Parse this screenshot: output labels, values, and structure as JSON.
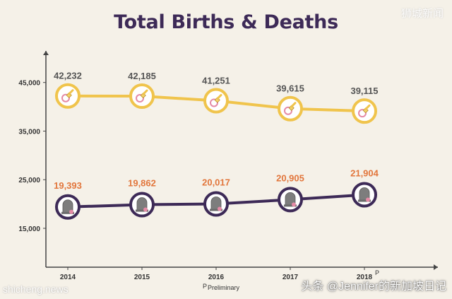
{
  "title": "Total Births & Deaths",
  "watermarks": {
    "top_right": "狮城新闻",
    "bottom_left": "shicheng.news",
    "bottom_right": "头条 @Jennifer的新加坡日记"
  },
  "footnote": {
    "marker": "P",
    "text": "Preliminary"
  },
  "colors": {
    "births": "#f0c44c",
    "deaths": "#3d2a57",
    "death_labels": "#e2763c",
    "birth_labels": "#555555",
    "axis": "#444444"
  },
  "chart_data": {
    "type": "line",
    "title": "Total Births & Deaths",
    "xlabel": "",
    "ylabel": "",
    "categories": [
      "2014",
      "2015",
      "2016",
      "2017",
      "2018"
    ],
    "category_suffix": [
      "",
      "",
      "",
      "",
      "P"
    ],
    "yticks": [
      15000,
      25000,
      35000,
      45000
    ],
    "ytick_labels": [
      "15,000",
      "25,000",
      "35,000",
      "45,000"
    ],
    "ylim": [
      7000,
      51500
    ],
    "grid": false,
    "series": [
      {
        "key": "births",
        "icon": "pacifier-icon",
        "values": [
          42232,
          42185,
          41251,
          39615,
          39115
        ],
        "labels": [
          "42,232",
          "42,185",
          "41,251",
          "39,615",
          "39,115"
        ]
      },
      {
        "key": "deaths",
        "icon": "tombstone-icon",
        "values": [
          19393,
          19862,
          20017,
          20905,
          21904
        ],
        "labels": [
          "19,393",
          "19,862",
          "20,017",
          "20,905",
          "21,904"
        ]
      }
    ]
  }
}
